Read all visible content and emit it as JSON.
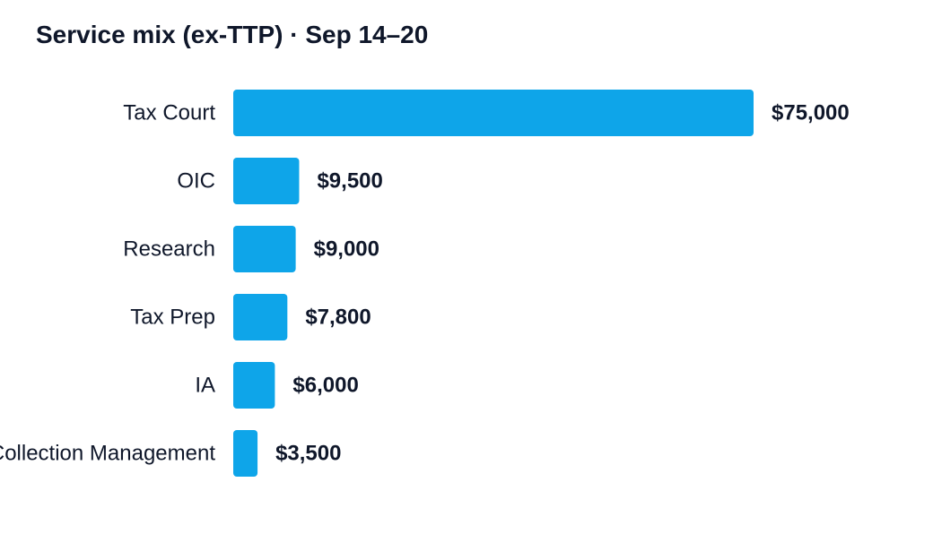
{
  "chart_data": {
    "type": "bar",
    "orientation": "horizontal",
    "title": "Service mix (ex-TTP) · Sep 14–20",
    "categories": [
      "Tax Court",
      "OIC",
      "Research",
      "Tax Prep",
      "IA",
      "Collection Management"
    ],
    "values": [
      75000,
      9500,
      9000,
      7800,
      6000,
      3500
    ],
    "value_labels": [
      "$75,000",
      "$9,500",
      "$9,000",
      "$7,800",
      "$6,000",
      "$3,500"
    ],
    "xlabel": "",
    "ylabel": "",
    "xlim": [
      0,
      75000
    ],
    "grid": false,
    "legend": "none",
    "bar_color": "#0ea5e9"
  }
}
